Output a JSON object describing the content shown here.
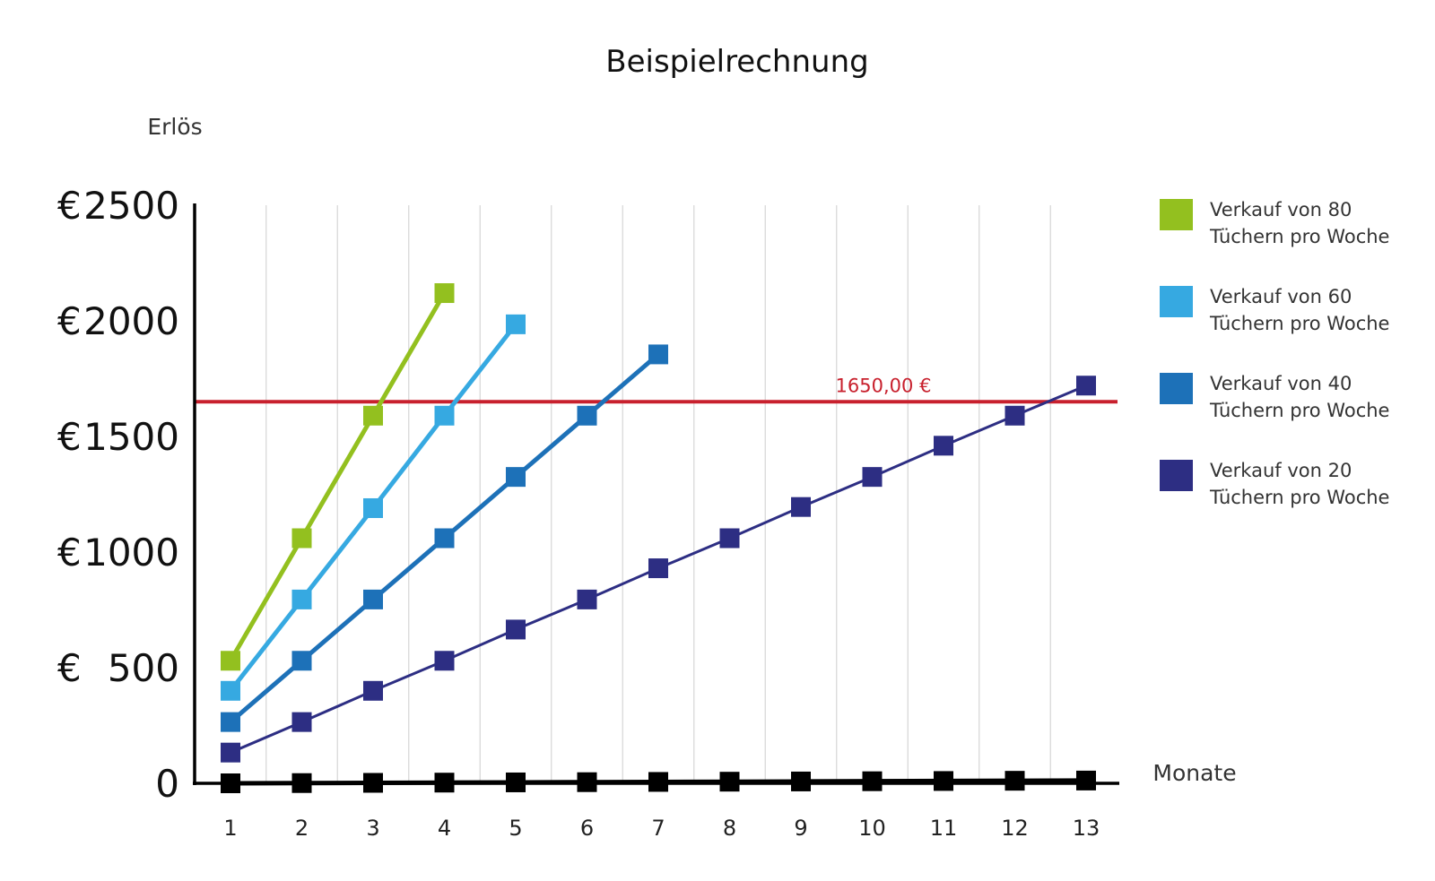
{
  "chart_data": {
    "type": "line",
    "title": "Beispielrechnung",
    "ylabel": "Erlös",
    "xlabel": "Monate",
    "x": [
      1,
      2,
      3,
      4,
      5,
      6,
      7,
      8,
      9,
      10,
      11,
      12,
      13
    ],
    "x_tick_labels": [
      "1",
      "2",
      "3",
      "4",
      "5",
      "6",
      "7",
      "8",
      "9",
      "10",
      "11",
      "12",
      "13"
    ],
    "ylim": [
      0,
      2500
    ],
    "y_ticks": [
      {
        "value": 2500,
        "prefix": "€",
        "label": "2500"
      },
      {
        "value": 2000,
        "prefix": "€",
        "label": "2000"
      },
      {
        "value": 1500,
        "prefix": "€",
        "label": "1500"
      },
      {
        "value": 1000,
        "prefix": "€",
        "label": "1000"
      },
      {
        "value": 500,
        "prefix": "€",
        "label": "500"
      },
      {
        "value": 0,
        "prefix": "",
        "label": "0"
      }
    ],
    "grid": "vertical",
    "legend_position": "right",
    "reference_line": {
      "value": 1650,
      "label": "1650,00 €",
      "color": "#c8202d"
    },
    "series": [
      {
        "name": "Verkauf von 80 Tüchern pro Woche",
        "legend_lines": [
          "Verkauf von 80",
          "Tüchern pro Woche"
        ],
        "color": "#93c01f",
        "x": [
          1,
          2,
          3,
          4
        ],
        "values": [
          530,
          1060,
          1590,
          2120
        ]
      },
      {
        "name": "Verkauf von 60 Tüchern pro Woche",
        "legend_lines": [
          "Verkauf von 60",
          "Tüchern pro Woche"
        ],
        "color": "#36a9e1",
        "x": [
          1,
          2,
          3,
          4,
          5
        ],
        "values": [
          400,
          795,
          1190,
          1590,
          1985
        ]
      },
      {
        "name": "Verkauf von 40 Tüchern pro Woche",
        "legend_lines": [
          "Verkauf von 40",
          "Tüchern pro Woche"
        ],
        "color": "#1d71b8",
        "x": [
          1,
          2,
          3,
          4,
          5,
          6,
          7
        ],
        "values": [
          265,
          530,
          795,
          1060,
          1325,
          1590,
          1855
        ]
      },
      {
        "name": "Verkauf von 20 Tüchern pro Woche",
        "legend_lines": [
          "Verkauf von 20",
          "Tüchern pro Woche"
        ],
        "color": "#2d2e83",
        "x": [
          1,
          2,
          3,
          4,
          5,
          6,
          7,
          8,
          9,
          10,
          11,
          12,
          13
        ],
        "values": [
          133,
          265,
          400,
          530,
          665,
          795,
          930,
          1060,
          1195,
          1325,
          1460,
          1590,
          1720
        ]
      },
      {
        "name": "",
        "color": "#000000",
        "x": [
          1,
          2,
          3,
          4,
          5,
          6,
          7,
          8,
          9,
          10,
          11,
          12,
          13
        ],
        "values": [
          0,
          1,
          2,
          3,
          4,
          5,
          6,
          7,
          8,
          9,
          10,
          11,
          12
        ]
      }
    ]
  }
}
